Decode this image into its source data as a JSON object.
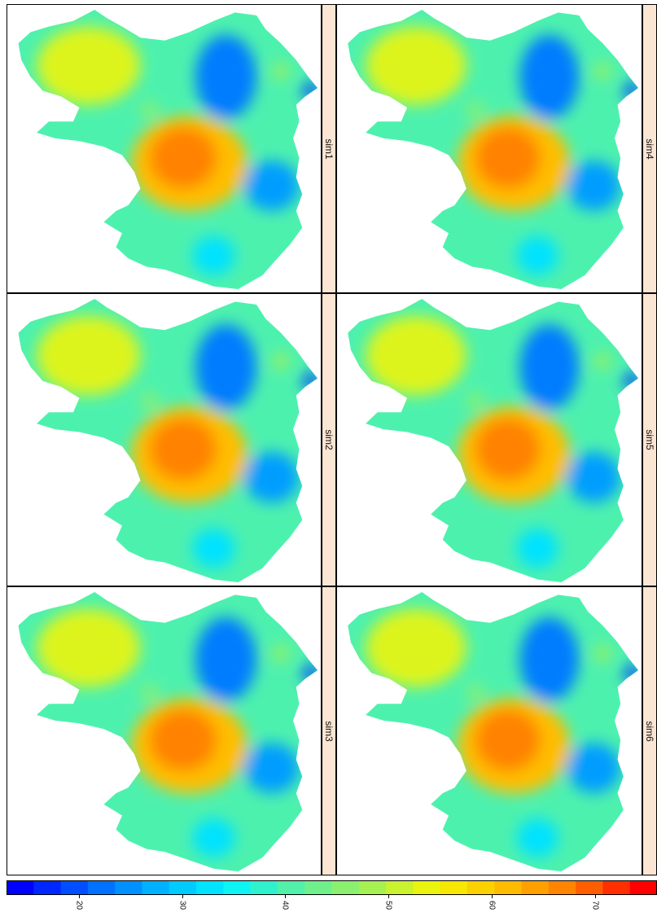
{
  "panels": [
    {
      "label": "sim1"
    },
    {
      "label": "sim2"
    },
    {
      "label": "sim3"
    },
    {
      "label": "sim4"
    },
    {
      "label": "sim5"
    },
    {
      "label": "sim6"
    }
  ],
  "colorkey": {
    "ticks": [
      "20",
      "30",
      "40",
      "50",
      "60",
      "70"
    ],
    "tick_values": [
      20,
      30,
      40,
      50,
      60,
      70
    ],
    "range": [
      13,
      76
    ],
    "colors": [
      "#0000ff",
      "#0064ff",
      "#00b4ff",
      "#00f5ff",
      "#5af0a0",
      "#a0f05a",
      "#f5f500",
      "#ffbe00",
      "#ff7800",
      "#ff0000"
    ]
  }
}
